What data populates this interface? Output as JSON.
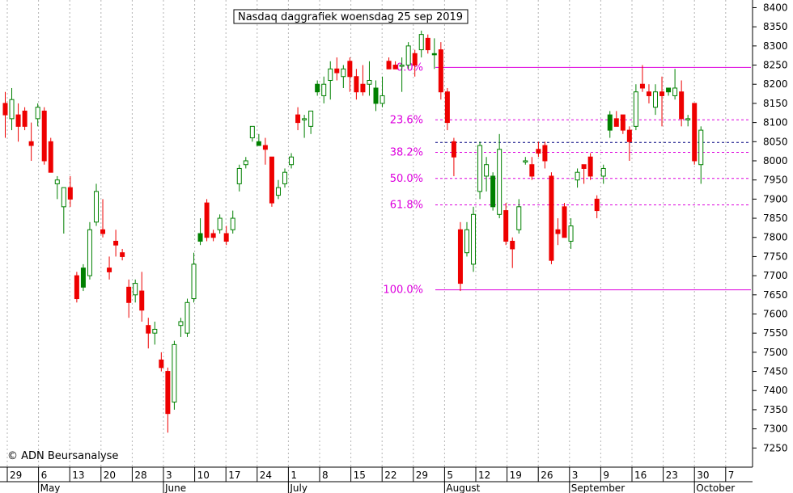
{
  "chart_data": {
    "type": "candlestick",
    "title": "Nasdaq daggrafiek woensdag 25 sep 2019",
    "copyright": "© ADN Beursanalyse",
    "ylim": [
      7200,
      8420
    ],
    "y_ticks": [
      7250,
      7300,
      7350,
      7400,
      7450,
      7500,
      7550,
      7600,
      7650,
      7700,
      7750,
      7800,
      7850,
      7900,
      7950,
      8000,
      8050,
      8100,
      8150,
      8200,
      8250,
      8300,
      8350,
      8400
    ],
    "day_labels": [
      "29",
      "6",
      "13",
      "20",
      "28",
      "3",
      "10",
      "17",
      "24",
      "1",
      "8",
      "15",
      "22",
      "29",
      "5",
      "12",
      "19",
      "26",
      "3",
      "9",
      "16",
      "23",
      "30",
      "7"
    ],
    "month_labels": [
      {
        "label": "May",
        "week": 1
      },
      {
        "label": "June",
        "week": 5
      },
      {
        "label": "July",
        "week": 9
      },
      {
        "label": "August",
        "week": 14
      },
      {
        "label": "September",
        "week": 18
      },
      {
        "label": "October",
        "week": 22
      }
    ],
    "grid": true,
    "colors": {
      "up_border": "#008000",
      "down_fill": "#ee0000",
      "up_fill_solid": "#008000",
      "fib": "#dd00dd",
      "grid": "#b4b4b4",
      "background": "#ffffff"
    },
    "fibonacci": {
      "high": 8244,
      "low": 7663,
      "levels": [
        {
          "label": "0.0%",
          "value": 8244,
          "style": "solid"
        },
        {
          "label": "23.6%",
          "value": 8107,
          "style": "dashed"
        },
        {
          "label": "38.2%",
          "value": 8022,
          "style": "dashed"
        },
        {
          "label": "50.0%",
          "value": 7954,
          "style": "dashed"
        },
        {
          "label": "61.8%",
          "value": 7885,
          "style": "dashed"
        },
        {
          "label": "100.0%",
          "value": 7663,
          "style": "solid"
        }
      ],
      "extra_line": {
        "value": 8048,
        "style": "dashed",
        "color": "#000080"
      }
    },
    "candles": [
      {
        "o": 8150,
        "h": 8180,
        "l": 8060,
        "c": 8120,
        "slot": 0
      },
      {
        "o": 8110,
        "h": 8190,
        "l": 8080,
        "c": 8160,
        "slot": 1
      },
      {
        "o": 8120,
        "h": 8150,
        "l": 8050,
        "c": 8090,
        "slot": 2
      },
      {
        "o": 8130,
        "h": 8140,
        "l": 8080,
        "c": 8090,
        "slot": 3
      },
      {
        "o": 8050,
        "h": 8100,
        "l": 8000,
        "c": 8040,
        "slot": 4
      },
      {
        "o": 8110,
        "h": 8150,
        "l": 8090,
        "c": 8140,
        "slot": 5
      },
      {
        "o": 8130,
        "h": 8140,
        "l": 7990,
        "c": 8000,
        "slot": 6
      },
      {
        "o": 8050,
        "h": 8060,
        "l": 7970,
        "c": 7970,
        "slot": 7
      },
      {
        "o": 7940,
        "h": 7960,
        "l": 7900,
        "c": 7950,
        "slot": 8
      },
      {
        "o": 7880,
        "h": 7930,
        "l": 7810,
        "c": 7930,
        "slot": 9
      },
      {
        "o": 7930,
        "h": 7960,
        "l": 7880,
        "c": 7900,
        "slot": 10
      },
      {
        "o": 7700,
        "h": 7710,
        "l": 7630,
        "c": 7640,
        "slot": 11
      },
      {
        "o": 7670,
        "h": 7730,
        "l": 7660,
        "c": 7720,
        "slot": 12
      },
      {
        "o": 7700,
        "h": 7840,
        "l": 7690,
        "c": 7820,
        "slot": 13
      },
      {
        "o": 7840,
        "h": 7940,
        "l": 7830,
        "c": 7920,
        "slot": 14
      },
      {
        "o": 7820,
        "h": 7900,
        "l": 7800,
        "c": 7810,
        "slot": 15
      },
      {
        "o": 7720,
        "h": 7750,
        "l": 7690,
        "c": 7710,
        "slot": 16
      },
      {
        "o": 7790,
        "h": 7820,
        "l": 7750,
        "c": 7780,
        "slot": 17
      },
      {
        "o": 7760,
        "h": 7770,
        "l": 7740,
        "c": 7750,
        "slot": 18
      },
      {
        "o": 7670,
        "h": 7690,
        "l": 7590,
        "c": 7630,
        "slot": 19
      },
      {
        "o": 7650,
        "h": 7690,
        "l": 7630,
        "c": 7680,
        "slot": 20
      },
      {
        "o": 7660,
        "h": 7710,
        "l": 7580,
        "c": 7610,
        "slot": 21
      },
      {
        "o": 7570,
        "h": 7590,
        "l": 7510,
        "c": 7550,
        "slot": 22
      },
      {
        "o": 7550,
        "h": 7580,
        "l": 7520,
        "c": 7560,
        "slot": 23
      },
      {
        "o": 7480,
        "h": 7500,
        "l": 7450,
        "c": 7460,
        "slot": 24
      },
      {
        "o": 7450,
        "h": 7460,
        "l": 7290,
        "c": 7340,
        "slot": 25
      },
      {
        "o": 7370,
        "h": 7530,
        "l": 7350,
        "c": 7520,
        "slot": 26
      },
      {
        "o": 7570,
        "h": 7590,
        "l": 7540,
        "c": 7580,
        "slot": 27
      },
      {
        "o": 7550,
        "h": 7640,
        "l": 7540,
        "c": 7630,
        "slot": 28
      },
      {
        "o": 7640,
        "h": 7760,
        "l": 7630,
        "c": 7730,
        "slot": 29
      },
      {
        "o": 7790,
        "h": 7850,
        "l": 7780,
        "c": 7810,
        "slot": 30
      },
      {
        "o": 7890,
        "h": 7900,
        "l": 7790,
        "c": 7800,
        "slot": 31
      },
      {
        "o": 7810,
        "h": 7820,
        "l": 7790,
        "c": 7800,
        "slot": 32
      },
      {
        "o": 7820,
        "h": 7860,
        "l": 7810,
        "c": 7850,
        "slot": 33
      },
      {
        "o": 7810,
        "h": 7830,
        "l": 7780,
        "c": 7790,
        "slot": 34
      },
      {
        "o": 7820,
        "h": 7870,
        "l": 7810,
        "c": 7850,
        "slot": 35
      },
      {
        "o": 7940,
        "h": 7990,
        "l": 7920,
        "c": 7980,
        "slot": 36
      },
      {
        "o": 7990,
        "h": 8010,
        "l": 7980,
        "c": 8000,
        "slot": 37
      },
      {
        "o": 8060,
        "h": 8090,
        "l": 8050,
        "c": 8090,
        "slot": 38
      },
      {
        "o": 8040,
        "h": 8070,
        "l": 8040,
        "c": 8050,
        "slot": 39
      },
      {
        "o": 8040,
        "h": 8060,
        "l": 7990,
        "c": 8030,
        "slot": 40
      },
      {
        "o": 8010,
        "h": 8010,
        "l": 7880,
        "c": 7890,
        "slot": 41
      },
      {
        "o": 7910,
        "h": 7950,
        "l": 7900,
        "c": 7930,
        "slot": 42
      },
      {
        "o": 7940,
        "h": 7980,
        "l": 7930,
        "c": 7970,
        "slot": 43
      },
      {
        "o": 7990,
        "h": 8020,
        "l": 7980,
        "c": 8010,
        "slot": 44
      },
      {
        "o": 8120,
        "h": 8140,
        "l": 8080,
        "c": 8100,
        "slot": 45
      },
      {
        "o": 8110,
        "h": 8120,
        "l": 8060,
        "c": 8110,
        "slot": 46
      },
      {
        "o": 8090,
        "h": 8130,
        "l": 8070,
        "c": 8130,
        "slot": 47
      },
      {
        "o": 8180,
        "h": 8210,
        "l": 8170,
        "c": 8200,
        "slot": 48
      },
      {
        "o": 8170,
        "h": 8220,
        "l": 8150,
        "c": 8200,
        "slot": 49
      },
      {
        "o": 8210,
        "h": 8260,
        "l": 8160,
        "c": 8240,
        "slot": 50
      },
      {
        "o": 8240,
        "h": 8270,
        "l": 8210,
        "c": 8230,
        "slot": 51
      },
      {
        "o": 8220,
        "h": 8250,
        "l": 8190,
        "c": 8240,
        "slot": 52
      },
      {
        "o": 8260,
        "h": 8270,
        "l": 8180,
        "c": 8220,
        "slot": 53
      },
      {
        "o": 8220,
        "h": 8240,
        "l": 8160,
        "c": 8180,
        "slot": 54
      },
      {
        "o": 8200,
        "h": 8250,
        "l": 8170,
        "c": 8180,
        "slot": 55
      },
      {
        "o": 8200,
        "h": 8260,
        "l": 8170,
        "c": 8210,
        "slot": 56
      },
      {
        "o": 8150,
        "h": 8210,
        "l": 8130,
        "c": 8190,
        "slot": 57
      },
      {
        "o": 8150,
        "h": 8220,
        "l": 8140,
        "c": 8170,
        "slot": 58
      },
      {
        "o": 8260,
        "h": 8270,
        "l": 8240,
        "c": 8240,
        "slot": 59
      },
      {
        "o": 8250,
        "h": 8260,
        "l": 8240,
        "c": 8240,
        "slot": 60
      },
      {
        "o": 8250,
        "h": 8270,
        "l": 8180,
        "c": 8250,
        "slot": 61
      },
      {
        "o": 8250,
        "h": 8310,
        "l": 8240,
        "c": 8300,
        "slot": 62
      },
      {
        "o": 8280,
        "h": 8290,
        "l": 8220,
        "c": 8250,
        "slot": 63
      },
      {
        "o": 8290,
        "h": 8340,
        "l": 8270,
        "c": 8330,
        "slot": 64
      },
      {
        "o": 8320,
        "h": 8330,
        "l": 8280,
        "c": 8290,
        "slot": 65
      },
      {
        "o": 8280,
        "h": 8320,
        "l": 8240,
        "c": 8280,
        "slot": 66
      },
      {
        "o": 8290,
        "h": 8310,
        "l": 8160,
        "c": 8180,
        "slot": 67
      },
      {
        "o": 8180,
        "h": 8190,
        "l": 8080,
        "c": 8100,
        "slot": 68
      },
      {
        "o": 8050,
        "h": 8060,
        "l": 7960,
        "c": 8010,
        "slot": 69
      },
      {
        "o": 7820,
        "h": 7840,
        "l": 7660,
        "c": 7680,
        "slot": 70
      },
      {
        "o": 7760,
        "h": 7840,
        "l": 7750,
        "c": 7820,
        "slot": 71
      },
      {
        "o": 7730,
        "h": 7880,
        "l": 7710,
        "c": 7860,
        "slot": 72
      },
      {
        "o": 7920,
        "h": 8050,
        "l": 7900,
        "c": 8040,
        "slot": 73
      },
      {
        "o": 7960,
        "h": 8010,
        "l": 7920,
        "c": 7990,
        "slot": 74
      },
      {
        "o": 7880,
        "h": 7970,
        "l": 7870,
        "c": 7960,
        "slot": 75
      },
      {
        "o": 7860,
        "h": 8070,
        "l": 7850,
        "c": 8030,
        "slot": 76
      },
      {
        "o": 7870,
        "h": 7890,
        "l": 7780,
        "c": 7790,
        "slot": 77
      },
      {
        "o": 7790,
        "h": 7800,
        "l": 7720,
        "c": 7770,
        "slot": 78
      },
      {
        "o": 7820,
        "h": 7900,
        "l": 7810,
        "c": 7880,
        "slot": 79
      },
      {
        "o": 8000,
        "h": 8010,
        "l": 7990,
        "c": 8000,
        "slot": 80
      },
      {
        "o": 7990,
        "h": 8010,
        "l": 7950,
        "c": 7960,
        "slot": 81
      },
      {
        "o": 8030,
        "h": 8050,
        "l": 8010,
        "c": 8020,
        "slot": 82
      },
      {
        "o": 8040,
        "h": 8050,
        "l": 7980,
        "c": 8000,
        "slot": 83
      },
      {
        "o": 7960,
        "h": 7970,
        "l": 7730,
        "c": 7740,
        "slot": 84
      },
      {
        "o": 7820,
        "h": 7850,
        "l": 7780,
        "c": 7810,
        "slot": 85
      },
      {
        "o": 7880,
        "h": 7890,
        "l": 7800,
        "c": 7800,
        "slot": 86
      },
      {
        "o": 7790,
        "h": 7850,
        "l": 7770,
        "c": 7830,
        "slot": 87
      },
      {
        "o": 7950,
        "h": 7980,
        "l": 7930,
        "c": 7970,
        "slot": 88
      },
      {
        "o": 7990,
        "h": 7990,
        "l": 7940,
        "c": 7980,
        "slot": 89
      },
      {
        "o": 8010,
        "h": 8020,
        "l": 7950,
        "c": 7960,
        "slot": 90
      },
      {
        "o": 7900,
        "h": 7910,
        "l": 7850,
        "c": 7870,
        "slot": 91
      },
      {
        "o": 7960,
        "h": 7990,
        "l": 7940,
        "c": 7980,
        "slot": 92
      },
      {
        "o": 8080,
        "h": 8130,
        "l": 8060,
        "c": 8120,
        "slot": 93
      },
      {
        "o": 8110,
        "h": 8130,
        "l": 8090,
        "c": 8090,
        "slot": 94
      },
      {
        "o": 8120,
        "h": 8120,
        "l": 8070,
        "c": 8080,
        "slot": 95
      },
      {
        "o": 8080,
        "h": 8090,
        "l": 8000,
        "c": 8050,
        "slot": 96
      },
      {
        "o": 8090,
        "h": 8200,
        "l": 8080,
        "c": 8180,
        "slot": 97
      },
      {
        "o": 8200,
        "h": 8250,
        "l": 8180,
        "c": 8190,
        "slot": 98
      },
      {
        "o": 8180,
        "h": 8200,
        "l": 8150,
        "c": 8170,
        "slot": 99
      },
      {
        "o": 8140,
        "h": 8200,
        "l": 8120,
        "c": 8180,
        "slot": 100
      },
      {
        "o": 8180,
        "h": 8220,
        "l": 8090,
        "c": 8170,
        "slot": 101
      },
      {
        "o": 8180,
        "h": 8190,
        "l": 8170,
        "c": 8190,
        "slot": 102
      },
      {
        "o": 8170,
        "h": 8240,
        "l": 8160,
        "c": 8190,
        "slot": 103
      },
      {
        "o": 8180,
        "h": 8210,
        "l": 8090,
        "c": 8110,
        "slot": 104
      },
      {
        "o": 8110,
        "h": 8120,
        "l": 8090,
        "c": 8110,
        "slot": 105
      },
      {
        "o": 8150,
        "h": 8150,
        "l": 7990,
        "c": 8000,
        "slot": 106
      },
      {
        "o": 7990,
        "h": 8090,
        "l": 7940,
        "c": 8080,
        "slot": 107
      }
    ]
  }
}
